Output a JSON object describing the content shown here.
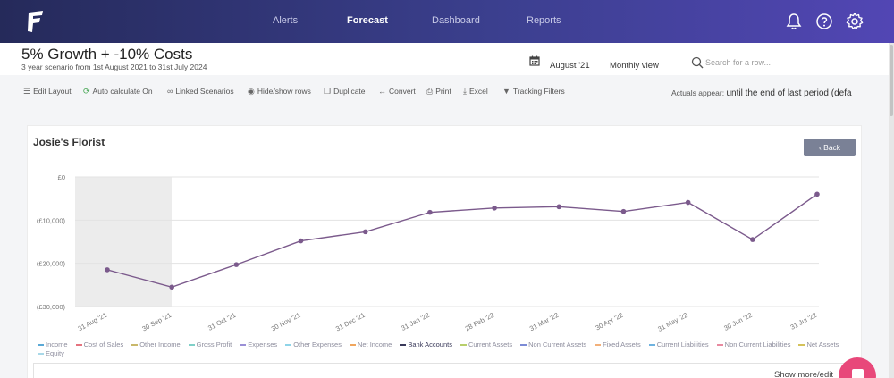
{
  "nav": {
    "items": [
      "Alerts",
      "Forecast",
      "Dashboard",
      "Reports"
    ],
    "active": "Forecast",
    "icons": [
      "bell-icon",
      "help-icon",
      "settings-icon"
    ],
    "brand_color": "#3b3f8e"
  },
  "header": {
    "title": "5% Growth + -10% Costs",
    "subtitle": "3 year scenario from 1st August 2021 to 31st July 2024",
    "date": "August '21",
    "view": "Monthly view",
    "search_placeholder": "Search for a row..."
  },
  "toolbar": {
    "edit_layout": "Edit Layout",
    "auto_calculate": "Auto calculate On",
    "linked_scenarios": "Linked Scenarios",
    "hide_show_rows": "Hide/show rows",
    "duplicate": "Duplicate",
    "convert": "Convert",
    "print": "Print",
    "excel": "Excel",
    "tracking_filters": "Tracking Filters",
    "actuals_label": "Actuals appear:",
    "actuals_value": "until the end of last period (defa"
  },
  "card": {
    "title": "Josie's Florist",
    "back_label": "‹ Back",
    "show_more": "Show more/edit"
  },
  "chart_data": {
    "type": "line",
    "title": "",
    "y_ticks": [
      "£0",
      "(£10,000)",
      "(£20,000)",
      "(£30,000)"
    ],
    "ylim": [
      -30000,
      0
    ],
    "categories": [
      "31 Aug '21",
      "30 Sep '21",
      "31 Oct '21",
      "30 Nov '21",
      "31 Dec '21",
      "31 Jan '22",
      "28 Feb '22",
      "31 Mar '22",
      "30 Apr '22",
      "31 May '22",
      "30 Jun '22",
      "31 Jul '22"
    ],
    "series": [
      {
        "name": "Bank Accounts",
        "color": "#7b5a8c",
        "values": [
          -21500,
          -25500,
          -20300,
          -14800,
          -12700,
          -8200,
          -7200,
          -6900,
          -8000,
          -5900,
          -14500,
          -4000
        ]
      }
    ],
    "actuals_shaded_through": "31 Aug '21",
    "grid": "horizontal"
  },
  "legend": [
    {
      "name": "Income",
      "color": "#5aa9d6"
    },
    {
      "name": "Cost of Sales",
      "color": "#e5737f"
    },
    {
      "name": "Other Income",
      "color": "#c9b86b"
    },
    {
      "name": "Gross Profit",
      "color": "#7fd0c8"
    },
    {
      "name": "Expenses",
      "color": "#9a8fd6"
    },
    {
      "name": "Other Expenses",
      "color": "#8fd4e8"
    },
    {
      "name": "Net Income",
      "color": "#f0a65e"
    },
    {
      "name": "Bank Accounts",
      "color": "#3a3a5a"
    },
    {
      "name": "Current Assets",
      "color": "#b8cf6b"
    },
    {
      "name": "Non Current Assets",
      "color": "#7c8bd6"
    },
    {
      "name": "Fixed Assets",
      "color": "#f2b07a"
    },
    {
      "name": "Current Liabilities",
      "color": "#6fb3e0"
    },
    {
      "name": "Non Current Liabilities",
      "color": "#e88aa0"
    },
    {
      "name": "Net Assets",
      "color": "#d4c25a"
    },
    {
      "name": "Equity",
      "color": "#a8d8e8"
    }
  ]
}
